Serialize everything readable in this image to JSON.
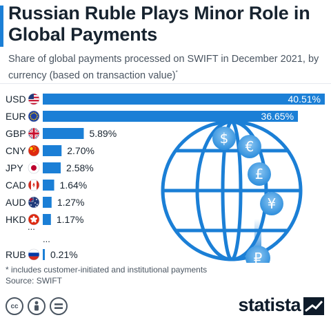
{
  "header": {
    "title": "Russian Ruble Plays Minor Role in Global Payments",
    "subtitle": "Share of global payments processed on SWIFT in December 2021, by currency (based on transaction value)",
    "subtitle_mark": "*"
  },
  "chart_data": {
    "type": "bar",
    "orientation": "horizontal",
    "categories": [
      "USD",
      "EUR",
      "GBP",
      "CNY",
      "JPY",
      "CAD",
      "AUD",
      "HKD",
      "RUB"
    ],
    "values": [
      40.51,
      36.65,
      5.89,
      2.7,
      2.58,
      1.64,
      1.27,
      1.17,
      0.21
    ],
    "value_labels": [
      "40.51%",
      "36.65%",
      "5.89%",
      "2.70%",
      "2.58%",
      "1.64%",
      "1.27%",
      "1.17%",
      "0.21%"
    ],
    "gap_marker": "...",
    "xlim": [
      0,
      40.51
    ],
    "bar_color": "#1b7fd6",
    "grid": false,
    "legend": "none"
  },
  "footer": {
    "footnote": "* includes customer-initiated and institutional payments",
    "source": "Source: SWIFT",
    "brand": "statista",
    "license_icons": [
      "cc-icon",
      "by-icon",
      "nd-icon"
    ]
  },
  "colors": {
    "accent": "#1b7fd6",
    "globe": "#1b7fd6",
    "coin": "#4aa3e8"
  }
}
